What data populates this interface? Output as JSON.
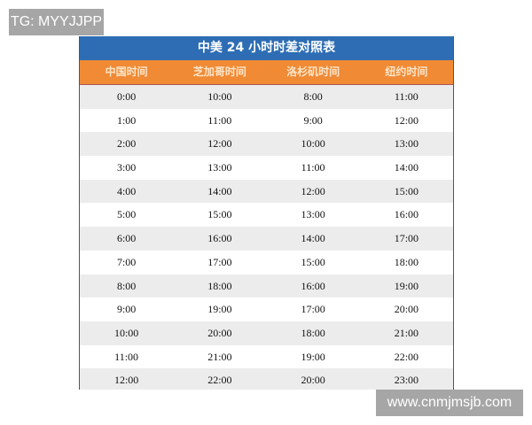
{
  "watermark_top": "TG: MYYJJPP",
  "watermark_bottom": "www.cnmjmsjb.com",
  "table": {
    "title": "中美 24 小时时差对照表",
    "headers": [
      "中国时间",
      "芝加哥时间",
      "洛杉矶时间",
      "纽约时间"
    ],
    "rows": [
      [
        "0:00",
        "10:00",
        "8:00",
        "11:00"
      ],
      [
        "1:00",
        "11:00",
        "9:00",
        "12:00"
      ],
      [
        "2:00",
        "12:00",
        "10:00",
        "13:00"
      ],
      [
        "3:00",
        "13:00",
        "11:00",
        "14:00"
      ],
      [
        "4:00",
        "14:00",
        "12:00",
        "15:00"
      ],
      [
        "5:00",
        "15:00",
        "13:00",
        "16:00"
      ],
      [
        "6:00",
        "16:00",
        "14:00",
        "17:00"
      ],
      [
        "7:00",
        "17:00",
        "15:00",
        "18:00"
      ],
      [
        "8:00",
        "18:00",
        "16:00",
        "19:00"
      ],
      [
        "9:00",
        "19:00",
        "17:00",
        "20:00"
      ],
      [
        "10:00",
        "20:00",
        "18:00",
        "21:00"
      ],
      [
        "11:00",
        "21:00",
        "19:00",
        "22:00"
      ],
      [
        "12:00",
        "22:00",
        "20:00",
        "23:00"
      ]
    ]
  },
  "colors": {
    "title_bg": "#2e6db4",
    "header_bg": "#f08a35"
  }
}
